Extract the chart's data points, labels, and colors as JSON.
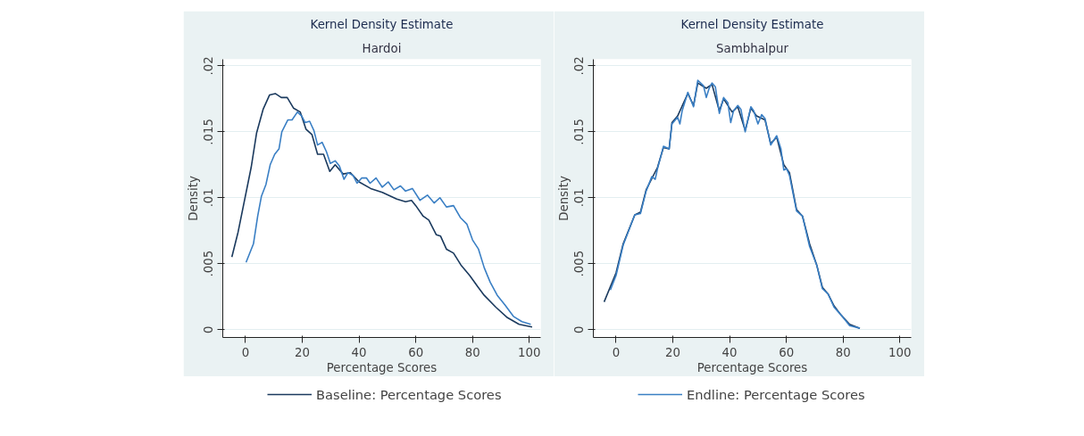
{
  "chart_data": [
    {
      "type": "line",
      "title": "Kernel Density Estimate",
      "subtitle": "Hardoi",
      "xlabel": "Percentage Scores",
      "ylabel": "Density",
      "xlim": [
        -8,
        104
      ],
      "ylim": [
        -0.0006,
        0.0205
      ],
      "xticks": [
        0,
        20,
        40,
        60,
        80,
        100
      ],
      "yticks": [
        0,
        {
          "value": 0.005,
          "label": ".005"
        },
        {
          "value": 0.01,
          "label": ".01"
        },
        {
          "value": 0.015,
          "label": ".015"
        },
        {
          "value": 0.02,
          "label": ".02"
        }
      ],
      "grid": "y",
      "legend": "bottom",
      "marker": "none",
      "line_style": "solid",
      "series": [
        {
          "name": "Baseline: Percentage Scores",
          "color": "#1b3a5e",
          "x": [
            -4.8,
            -2.6,
            2,
            3.9,
            6.2,
            8.5,
            10.5,
            12.6,
            14.7,
            16.9,
            19.3,
            21.3,
            23.4,
            25.4,
            27.5,
            29.7,
            31.6,
            34.4,
            36.9,
            40,
            44.1,
            48.2,
            53.3,
            56.4,
            58.5,
            60,
            62.6,
            64.6,
            67.2,
            68.7,
            70.8,
            73.3,
            75.9,
            79,
            82,
            84.1,
            88.2,
            92.3,
            96.4,
            101
          ],
          "values": [
            0.0055,
            0.0074,
            0.0123,
            0.0149,
            0.0167,
            0.0178,
            0.0179,
            0.0176,
            0.0176,
            0.0168,
            0.0165,
            0.0152,
            0.0148,
            0.0133,
            0.0133,
            0.012,
            0.0125,
            0.0118,
            0.0119,
            0.0112,
            0.0107,
            0.0104,
            0.0099,
            0.0097,
            0.0098,
            0.0094,
            0.0086,
            0.0083,
            0.0072,
            0.0071,
            0.0061,
            0.0058,
            0.0049,
            0.0041,
            0.0032,
            0.0026,
            0.0017,
            0.0009,
            0.0004,
            0.0002
          ]
        },
        {
          "color": "#3a7fc4",
          "x": [
            0.2,
            2.8,
            4.3,
            5.6,
            7.2,
            8.7,
            10.3,
            11.8,
            12.8,
            14.9,
            16.4,
            18.3,
            19.8,
            21,
            22.6,
            24.1,
            25.4,
            27,
            28.5,
            29.9,
            31.6,
            33.1,
            34.7,
            36.1,
            37.9,
            39.3,
            41,
            42.6,
            43.9,
            46,
            48.2,
            50.3,
            52.3,
            54.6,
            56.4,
            58.8,
            61.5,
            64.1,
            66.5,
            68.5,
            70.8,
            73.3,
            75.7,
            78,
            80,
            82.1,
            84.1,
            86.2,
            88.7,
            91.3,
            94.4,
            97.4,
            100.5
          ],
          "values": [
            0.0051,
            0.0065,
            0.0086,
            0.0101,
            0.011,
            0.0125,
            0.0133,
            0.0137,
            0.015,
            0.0159,
            0.0159,
            0.0165,
            0.0162,
            0.0157,
            0.0158,
            0.0151,
            0.014,
            0.0142,
            0.0135,
            0.0126,
            0.0128,
            0.0124,
            0.0114,
            0.0119,
            0.0117,
            0.0111,
            0.0115,
            0.0115,
            0.0111,
            0.0115,
            0.0108,
            0.0112,
            0.0106,
            0.0109,
            0.0105,
            0.0107,
            0.0098,
            0.0102,
            0.0096,
            0.01,
            0.0093,
            0.0094,
            0.0085,
            0.008,
            0.0068,
            0.0061,
            0.0047,
            0.0036,
            0.0026,
            0.0019,
            0.001,
            0.0006,
            0.0004
          ]
        }
      ]
    },
    {
      "type": "line",
      "title": "Kernel Density Estimate",
      "subtitle": "Sambhalpur",
      "xlabel": "Percentage Scores",
      "ylabel": "Density",
      "xlim": [
        -8,
        104
      ],
      "ylim": [
        -0.0006,
        0.0205
      ],
      "xticks": [
        0,
        20,
        40,
        60,
        80,
        100
      ],
      "yticks": [
        0,
        {
          "value": 0.005,
          "label": ".005"
        },
        {
          "value": 0.01,
          "label": ".01"
        },
        {
          "value": 0.015,
          "label": ".015"
        },
        {
          "value": 0.02,
          "label": ".02"
        }
      ],
      "grid": "y",
      "legend": "bottom",
      "marker": "none",
      "line_style": "solid",
      "series": [
        {
          "color": "#1b3a5e",
          "x": [
            -4.2,
            0,
            2.5,
            6.6,
            8.6,
            10.6,
            14.6,
            16.7,
            18.7,
            19.7,
            21.7,
            25.3,
            27.3,
            28.8,
            31.8,
            33.8,
            36.4,
            37.9,
            40.9,
            42.9,
            45.5,
            47.5,
            49.5,
            52.5,
            54.5,
            56.6,
            59.1,
            61.1,
            63.6,
            65.7,
            68.2,
            70.7,
            72.7,
            74.7,
            76.8,
            79.3,
            82.3,
            85.9
          ],
          "values": [
            0.0021,
            0.0043,
            0.0065,
            0.0087,
            0.0089,
            0.0106,
            0.0123,
            0.0138,
            0.0137,
            0.0157,
            0.0162,
            0.0179,
            0.017,
            0.0187,
            0.0183,
            0.0186,
            0.0166,
            0.0175,
            0.0165,
            0.0169,
            0.0151,
            0.0168,
            0.0162,
            0.0159,
            0.0141,
            0.0146,
            0.0125,
            0.0119,
            0.0091,
            0.0086,
            0.0065,
            0.0049,
            0.0032,
            0.0027,
            0.0018,
            0.0011,
            0.0004,
            0.0001
          ]
        },
        {
          "name": "Endline: Percentage Scores",
          "color": "#3a7fc4",
          "x": [
            -2,
            0,
            2.5,
            6.6,
            8.6,
            10.6,
            12.6,
            13.8,
            14.6,
            16.7,
            18.7,
            19.7,
            21.7,
            22.5,
            23.3,
            25.3,
            27.3,
            28.8,
            30.8,
            31.8,
            32.8,
            33.8,
            35,
            36.4,
            37.9,
            39.4,
            40.4,
            41.4,
            42.9,
            44,
            45.5,
            47.5,
            48.5,
            50,
            51.3,
            52.5,
            54.5,
            56.6,
            58.1,
            59.1,
            60.1,
            61.1,
            63.6,
            65.7,
            68.2,
            70.7,
            72.7,
            74.7,
            76.8,
            79.3,
            82.3,
            85.9
          ],
          "values": [
            0.003,
            0.0041,
            0.0064,
            0.0087,
            0.0088,
            0.0105,
            0.0116,
            0.0114,
            0.0122,
            0.0139,
            0.0137,
            0.0156,
            0.0161,
            0.0156,
            0.0166,
            0.018,
            0.0169,
            0.0189,
            0.0185,
            0.0176,
            0.0183,
            0.0187,
            0.0184,
            0.0164,
            0.0176,
            0.0172,
            0.0157,
            0.0166,
            0.017,
            0.0167,
            0.015,
            0.0169,
            0.0166,
            0.0156,
            0.0163,
            0.016,
            0.014,
            0.0147,
            0.0137,
            0.0121,
            0.0122,
            0.0117,
            0.009,
            0.0086,
            0.0063,
            0.0049,
            0.0031,
            0.0027,
            0.0017,
            0.0011,
            0.0003,
            0.0001
          ]
        }
      ]
    }
  ]
}
